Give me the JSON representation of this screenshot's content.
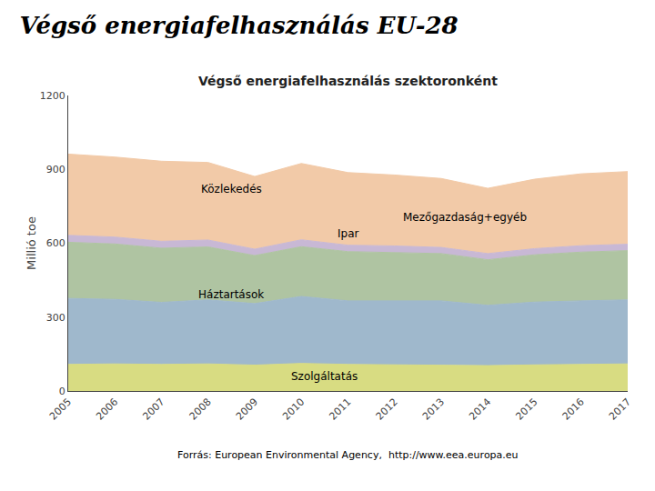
{
  "chart_data": {
    "type": "area",
    "stacked": true,
    "title": "Végső energiafelhasználás EU-28",
    "subtitle": "Végső energiafelhasználás szektoronként",
    "y_label": "Millió toe",
    "source": "Forrás: European Environmental Agency,  http://www.eea.europa.eu",
    "x": [
      2005,
      2006,
      2007,
      2008,
      2009,
      2010,
      2011,
      2012,
      2013,
      2014,
      2015,
      2016,
      2017
    ],
    "series": [
      {
        "name": "Szolgáltatás",
        "color": "#d8dc82",
        "values": [
          108,
          110,
          108,
          110,
          105,
          112,
          108,
          107,
          106,
          103,
          106,
          108,
          110
        ]
      },
      {
        "name": "Háztartások",
        "color": "#9fb8cc",
        "values": [
          268,
          262,
          252,
          260,
          250,
          272,
          258,
          260,
          260,
          245,
          255,
          258,
          260
        ]
      },
      {
        "name": "Ipar",
        "color": "#afc4a2",
        "values": [
          228,
          225,
          220,
          215,
          195,
          202,
          200,
          196,
          192,
          185,
          192,
          198,
          200
        ]
      },
      {
        "name": "Mezőgazdaság+egyéb",
        "color": "#c8b8d5",
        "values": [
          28,
          28,
          28,
          28,
          26,
          28,
          26,
          26,
          25,
          25,
          25,
          26,
          26
        ]
      },
      {
        "name": "Közlekedés",
        "color": "#f2caa8",
        "values": [
          330,
          325,
          325,
          315,
          295,
          310,
          295,
          288,
          280,
          265,
          282,
          292,
          295
        ]
      }
    ],
    "xlim": [
      2005,
      2017
    ],
    "xticks": [
      2005,
      2006,
      2007,
      2008,
      2009,
      2010,
      2011,
      2012,
      2013,
      2014,
      2015,
      2016,
      2017
    ],
    "ylim": [
      0,
      1200
    ],
    "yticks": [
      0,
      300,
      600,
      900,
      1200
    ],
    "grid": false,
    "legend": false,
    "annotations": [
      {
        "text": "Közlekedés",
        "x": 2008.5,
        "y": 820
      },
      {
        "text": "Mezőgazdaság+egyéb",
        "x": 2013.5,
        "y": 705
      },
      {
        "text": "Ipar",
        "x": 2011.0,
        "y": 640
      },
      {
        "text": "Háztartások",
        "x": 2008.5,
        "y": 390
      },
      {
        "text": "Szolgáltatás",
        "x": 2010.5,
        "y": 60
      }
    ]
  }
}
